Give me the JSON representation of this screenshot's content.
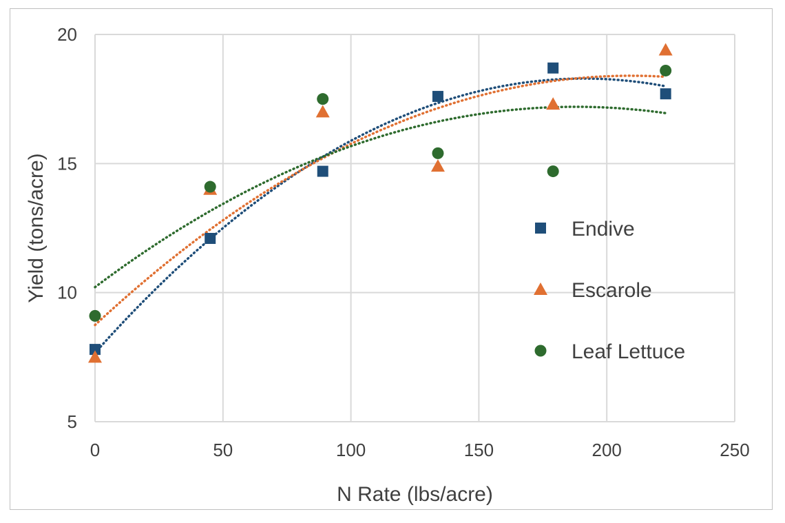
{
  "chart_data": {
    "type": "scatter",
    "title": "",
    "xlabel": "N Rate (lbs/acre)",
    "ylabel": "Yield (tons/acre)",
    "xlim": [
      0,
      250
    ],
    "ylim": [
      5,
      20
    ],
    "x_ticks": [
      0,
      50,
      100,
      150,
      200,
      250
    ],
    "y_ticks": [
      5,
      10,
      15,
      20
    ],
    "grid": true,
    "legend_position": "right",
    "trendline": "polynomial order 2 (dotted)",
    "series": [
      {
        "name": "Endive",
        "marker": "square",
        "color": "#1f4e79",
        "x": [
          0,
          45,
          89,
          134,
          179,
          223
        ],
        "y": [
          7.8,
          12.1,
          14.7,
          17.6,
          18.7,
          17.7
        ]
      },
      {
        "name": "Escarole",
        "marker": "triangle",
        "color": "#e07032",
        "x": [
          0,
          45,
          89,
          134,
          179,
          223
        ],
        "y": [
          7.5,
          14.0,
          17.0,
          14.9,
          17.3,
          19.4
        ]
      },
      {
        "name": "Leaf Lettuce",
        "marker": "circle",
        "color": "#2e6b2e",
        "x": [
          0,
          45,
          89,
          134,
          179,
          223
        ],
        "y": [
          9.1,
          14.1,
          17.5,
          15.4,
          14.7,
          18.6
        ]
      }
    ]
  }
}
